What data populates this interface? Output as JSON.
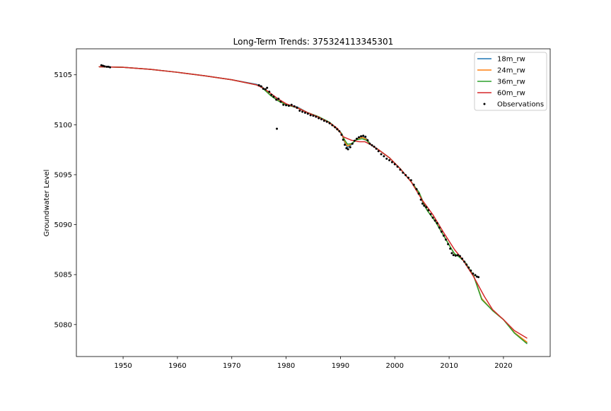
{
  "chart_data": {
    "type": "line",
    "title": "Long-Term Trends: 375324113345301",
    "xlabel": "",
    "ylabel": "Groundwater Level",
    "xlim": [
      1941.4,
      2028.6
    ],
    "ylim": [
      5076.8,
      5107.6
    ],
    "xticks": [
      1950,
      1960,
      1970,
      1980,
      1990,
      2000,
      2010,
      2020
    ],
    "yticks": [
      5080,
      5085,
      5090,
      5095,
      5100,
      5105
    ],
    "grid": false,
    "legend_position": "top-right",
    "series": [
      {
        "name": "18m_rw",
        "color": "#1f77b4",
        "x": [
          1945.6,
          1950,
          1955,
          1960,
          1965,
          1970,
          1974.5,
          1975.5,
          1976.3,
          1977.2,
          1978.5,
          1980,
          1982,
          1984,
          1986,
          1988,
          1989.3,
          1990.2,
          1990.8,
          1991.3,
          1992,
          1993,
          1994,
          1994.8,
          1995.6,
          1997,
          1999,
          2001,
          2003,
          2004.5,
          2005.2,
          2006,
          2007.5,
          2009,
          2010.4,
          2011,
          2012,
          2013,
          2014.5,
          2016,
          2018,
          2020,
          2022,
          2024.3
        ],
        "y": [
          5105.8,
          5105.75,
          5105.55,
          5105.25,
          5104.9,
          5104.5,
          5104.05,
          5103.85,
          5103.4,
          5102.9,
          5102.5,
          5102.0,
          5101.8,
          5101.2,
          5100.8,
          5100.2,
          5099.6,
          5099.1,
          5098.2,
          5097.7,
          5098.0,
          5098.6,
          5098.85,
          5098.6,
          5098.0,
          5097.5,
          5096.7,
          5095.6,
          5094.3,
          5093.2,
          5092.1,
          5091.4,
          5090.3,
          5088.9,
          5087.6,
          5087.0,
          5086.8,
          5086.2,
          5084.9,
          5082.6,
          5081.4,
          5080.5,
          5079.2,
          5078.2
        ]
      },
      {
        "name": "24m_rw",
        "color": "#ff7f0e",
        "x": [
          1945.6,
          1950,
          1955,
          1960,
          1965,
          1970,
          1974.5,
          1975.5,
          1976.3,
          1977.2,
          1978.5,
          1980,
          1982,
          1984,
          1986,
          1988,
          1989.3,
          1990.2,
          1990.8,
          1991.3,
          1992,
          1993,
          1994,
          1994.8,
          1995.6,
          1997,
          1999,
          2001,
          2003,
          2004.5,
          2005.2,
          2006,
          2007.5,
          2009,
          2010.4,
          2011,
          2012,
          2013,
          2014.5,
          2016,
          2018,
          2020,
          2022,
          2024.3
        ],
        "y": [
          5105.8,
          5105.75,
          5105.55,
          5105.25,
          5104.9,
          5104.5,
          5104.0,
          5103.8,
          5103.4,
          5102.9,
          5102.45,
          5102.0,
          5101.75,
          5101.2,
          5100.8,
          5100.2,
          5099.6,
          5099.1,
          5098.3,
          5097.85,
          5098.05,
          5098.55,
          5098.75,
          5098.55,
          5098.0,
          5097.5,
          5096.7,
          5095.6,
          5094.3,
          5093.2,
          5092.2,
          5091.4,
          5090.3,
          5088.9,
          5087.6,
          5087.05,
          5086.75,
          5086.2,
          5084.9,
          5082.6,
          5081.4,
          5080.5,
          5079.2,
          5078.25
        ]
      },
      {
        "name": "36m_rw",
        "color": "#2ca02c",
        "x": [
          1945.6,
          1950,
          1955,
          1960,
          1965,
          1970,
          1974.5,
          1975.5,
          1976.3,
          1977.2,
          1978.5,
          1980,
          1982,
          1984,
          1986,
          1988,
          1989.3,
          1990.2,
          1990.8,
          1991.3,
          1992,
          1993,
          1994,
          1994.8,
          1995.6,
          1997,
          1999,
          2001,
          2003,
          2004.5,
          2005.2,
          2006,
          2007.5,
          2009,
          2010.4,
          2011,
          2012,
          2013,
          2014.5,
          2016,
          2018,
          2020,
          2022,
          2024.3
        ],
        "y": [
          5105.8,
          5105.75,
          5105.55,
          5105.25,
          5104.9,
          5104.5,
          5104.0,
          5103.75,
          5103.35,
          5102.9,
          5102.4,
          5102.0,
          5101.7,
          5101.2,
          5100.8,
          5100.25,
          5099.65,
          5099.15,
          5098.45,
          5098.05,
          5098.1,
          5098.5,
          5098.6,
          5098.45,
          5098.0,
          5097.5,
          5096.7,
          5095.6,
          5094.3,
          5093.2,
          5092.3,
          5091.4,
          5090.3,
          5088.9,
          5087.6,
          5087.1,
          5086.7,
          5086.2,
          5084.9,
          5082.5,
          5081.4,
          5080.5,
          5079.15,
          5078.1
        ]
      },
      {
        "name": "60m_rw",
        "color": "#d62728",
        "x": [
          1945.6,
          1950,
          1955,
          1960,
          1965,
          1970,
          1974.5,
          1976,
          1978.5,
          1980,
          1982,
          1984,
          1986,
          1988,
          1989.5,
          1990.5,
          1992,
          1993.5,
          1994.5,
          1995.6,
          1997,
          1999,
          2001,
          2003,
          2005,
          2007,
          2009,
          2011,
          2012.5,
          2014.5,
          2016.5,
          2018,
          2020,
          2022,
          2024.3
        ],
        "y": [
          5105.8,
          5105.75,
          5105.55,
          5105.25,
          5104.9,
          5104.5,
          5104.0,
          5103.6,
          5102.6,
          5102.1,
          5101.7,
          5101.2,
          5100.75,
          5100.2,
          5099.6,
          5098.8,
          5098.45,
          5098.3,
          5098.3,
          5098.0,
          5097.5,
          5096.7,
          5095.6,
          5094.3,
          5092.5,
          5091.0,
          5089.2,
          5087.5,
          5086.5,
          5084.8,
          5082.8,
          5081.5,
          5080.5,
          5079.4,
          5078.65
        ]
      }
    ],
    "observations": {
      "name": "Observations",
      "color": "#000000",
      "outlier": [
        1978.3,
        5099.6
      ],
      "points": [
        [
          1946.0,
          5105.95
        ],
        [
          1946.3,
          5105.9
        ],
        [
          1946.6,
          5105.85
        ],
        [
          1947.0,
          5105.8
        ],
        [
          1947.3,
          5105.8
        ],
        [
          1947.6,
          5105.75
        ],
        [
          1975.0,
          5103.95
        ],
        [
          1975.4,
          5103.85
        ],
        [
          1975.8,
          5103.6
        ],
        [
          1976.2,
          5103.55
        ],
        [
          1976.5,
          5103.7
        ],
        [
          1976.9,
          5103.3
        ],
        [
          1977.3,
          5103.0
        ],
        [
          1977.7,
          5102.8
        ],
        [
          1978.2,
          5102.5
        ],
        [
          1978.6,
          5102.6
        ],
        [
          1979.0,
          5102.3
        ],
        [
          1979.5,
          5102.0
        ],
        [
          1980.0,
          5101.95
        ],
        [
          1980.5,
          5101.9
        ],
        [
          1981.0,
          5102.0
        ],
        [
          1981.5,
          5101.85
        ],
        [
          1982.0,
          5101.7
        ],
        [
          1982.5,
          5101.4
        ],
        [
          1983.0,
          5101.3
        ],
        [
          1983.5,
          5101.2
        ],
        [
          1984.0,
          5101.1
        ],
        [
          1984.5,
          5100.95
        ],
        [
          1985.0,
          5100.9
        ],
        [
          1985.5,
          5100.8
        ],
        [
          1986.0,
          5100.65
        ],
        [
          1986.5,
          5100.55
        ],
        [
          1987.0,
          5100.4
        ],
        [
          1987.5,
          5100.3
        ],
        [
          1988.0,
          5100.15
        ],
        [
          1988.5,
          5099.95
        ],
        [
          1989.0,
          5099.75
        ],
        [
          1989.4,
          5099.55
        ],
        [
          1989.8,
          5099.35
        ],
        [
          1990.2,
          5099.0
        ],
        [
          1990.5,
          5098.5
        ],
        [
          1990.8,
          5098.0
        ],
        [
          1991.1,
          5097.65
        ],
        [
          1991.4,
          5097.55
        ],
        [
          1991.8,
          5097.75
        ],
        [
          1992.2,
          5098.1
        ],
        [
          1992.6,
          5098.4
        ],
        [
          1993.0,
          5098.6
        ],
        [
          1993.4,
          5098.75
        ],
        [
          1993.8,
          5098.85
        ],
        [
          1994.2,
          5098.9
        ],
        [
          1994.6,
          5098.8
        ],
        [
          1995.0,
          5098.45
        ],
        [
          1995.4,
          5098.1
        ],
        [
          1995.8,
          5097.95
        ],
        [
          1996.2,
          5097.8
        ],
        [
          1996.6,
          5097.6
        ],
        [
          1997.0,
          5097.35
        ],
        [
          1997.5,
          5097.05
        ],
        [
          1998.0,
          5096.85
        ],
        [
          1998.5,
          5096.6
        ],
        [
          1999.0,
          5096.45
        ],
        [
          1999.5,
          5096.25
        ],
        [
          2000.0,
          5096.05
        ],
        [
          2000.5,
          5095.8
        ],
        [
          2001.0,
          5095.5
        ],
        [
          2001.5,
          5095.2
        ],
        [
          2002.0,
          5094.95
        ],
        [
          2002.5,
          5094.7
        ],
        [
          2003.0,
          5094.45
        ],
        [
          2003.5,
          5094.0
        ],
        [
          2004.0,
          5093.55
        ],
        [
          2004.4,
          5093.1
        ],
        [
          2004.8,
          5092.5
        ],
        [
          2005.1,
          5092.1
        ],
        [
          2005.4,
          5091.9
        ],
        [
          2005.8,
          5091.75
        ],
        [
          2006.2,
          5091.45
        ],
        [
          2006.6,
          5091.05
        ],
        [
          2007.0,
          5090.7
        ],
        [
          2007.4,
          5090.4
        ],
        [
          2007.8,
          5090.15
        ],
        [
          2008.2,
          5089.7
        ],
        [
          2008.6,
          5089.3
        ],
        [
          2009.0,
          5088.9
        ],
        [
          2009.4,
          5088.5
        ],
        [
          2009.8,
          5088.05
        ],
        [
          2010.2,
          5087.6
        ],
        [
          2010.5,
          5087.15
        ],
        [
          2010.8,
          5086.95
        ],
        [
          2011.2,
          5086.9
        ],
        [
          2011.6,
          5086.95
        ],
        [
          2012.0,
          5086.85
        ],
        [
          2012.4,
          5086.6
        ],
        [
          2012.8,
          5086.3
        ],
        [
          2013.2,
          5086.0
        ],
        [
          2013.6,
          5085.7
        ],
        [
          2014.0,
          5085.4
        ],
        [
          2014.4,
          5085.1
        ],
        [
          2014.8,
          5084.95
        ],
        [
          2015.1,
          5084.8
        ],
        [
          2015.4,
          5084.75
        ]
      ]
    }
  }
}
